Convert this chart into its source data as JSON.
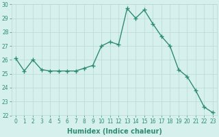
{
  "x": [
    0,
    1,
    2,
    3,
    4,
    5,
    6,
    7,
    8,
    9,
    10,
    11,
    12,
    13,
    14,
    15,
    16,
    17,
    18,
    19,
    20,
    21,
    22,
    23
  ],
  "y": [
    26.1,
    25.2,
    26.0,
    25.3,
    25.2,
    25.2,
    25.2,
    25.2,
    25.4,
    25.6,
    27.0,
    27.3,
    27.1,
    29.7,
    29.0,
    29.6,
    28.6,
    27.7,
    27.0,
    25.3,
    24.8,
    23.8,
    22.6,
    22.2
  ],
  "line_color": "#2e8b74",
  "marker": "+",
  "marker_size": 4,
  "bg_color": "#d6f0ee",
  "grid_color": "#b8d8d4",
  "xlabel": "Humidex (Indice chaleur)",
  "xlim": [
    -0.5,
    23.5
  ],
  "ylim": [
    22,
    30
  ],
  "yticks": [
    22,
    23,
    24,
    25,
    26,
    27,
    28,
    29,
    30
  ],
  "xticks": [
    0,
    1,
    2,
    3,
    4,
    5,
    6,
    7,
    8,
    9,
    10,
    11,
    12,
    13,
    14,
    15,
    16,
    17,
    18,
    19,
    20,
    21,
    22,
    23
  ],
  "xlabel_fontsize": 7.0,
  "tick_fontsize": 5.5,
  "line_width": 1.0
}
